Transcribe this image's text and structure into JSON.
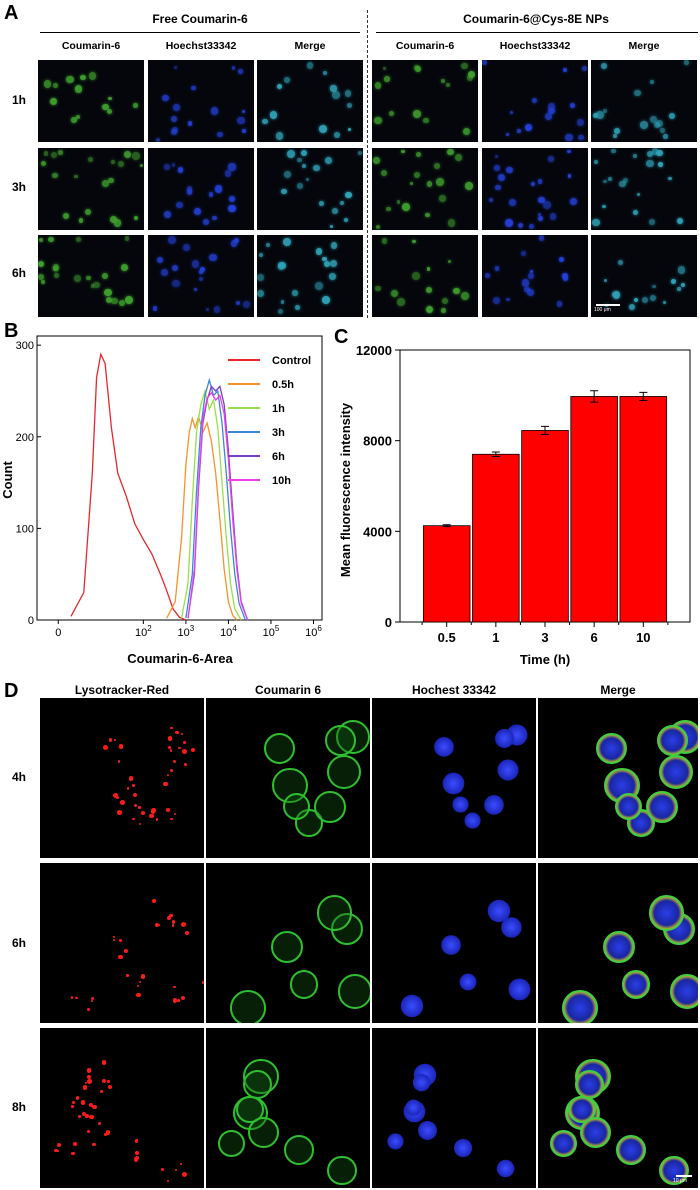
{
  "panelA": {
    "label": "A",
    "group_left": "Free Coumarin-6",
    "group_right": "Coumarin-6@Cys-8E NPs",
    "columns": [
      "Coumarin-6",
      "Hoechst33342",
      "Merge"
    ],
    "rows": [
      "1h",
      "3h",
      "6h"
    ],
    "scale_bar": "100 μm"
  },
  "panelB": {
    "label": "B",
    "chart_data": {
      "type": "line",
      "xlabel": "Coumarin-6-Area",
      "ylabel": "Count",
      "x_scale": "log",
      "x_ticks": [
        "0",
        "10^2",
        "10^3",
        "10^4",
        "10^5",
        "10^6"
      ],
      "y_ticks": [
        0,
        100,
        200,
        300
      ],
      "ylim": [
        0,
        310
      ],
      "legend_position": "top-right",
      "series": [
        {
          "name": "Control",
          "color": "#e8262b",
          "points": [
            [
              0.3,
              4
            ],
            [
              0.6,
              30
            ],
            [
              0.8,
              160
            ],
            [
              0.9,
              265
            ],
            [
              1.0,
              290
            ],
            [
              1.1,
              280
            ],
            [
              1.25,
              210
            ],
            [
              1.4,
              160
            ],
            [
              1.6,
              135
            ],
            [
              1.8,
              105
            ],
            [
              2.0,
              88
            ],
            [
              2.2,
              72
            ],
            [
              2.4,
              50
            ],
            [
              2.55,
              32
            ],
            [
              2.7,
              12
            ],
            [
              2.85,
              3
            ],
            [
              3.0,
              0
            ]
          ]
        },
        {
          "name": "0.5h",
          "color": "#f5932b",
          "points": [
            [
              2.55,
              2
            ],
            [
              2.75,
              20
            ],
            [
              2.9,
              90
            ],
            [
              3.0,
              170
            ],
            [
              3.08,
              205
            ],
            [
              3.15,
              220
            ],
            [
              3.22,
              210
            ],
            [
              3.3,
              222
            ],
            [
              3.4,
              205
            ],
            [
              3.5,
              215
            ],
            [
              3.6,
              195
            ],
            [
              3.7,
              160
            ],
            [
              3.8,
              110
            ],
            [
              3.9,
              55
            ],
            [
              4.0,
              20
            ],
            [
              4.1,
              5
            ],
            [
              4.2,
              0
            ]
          ]
        },
        {
          "name": "1h",
          "color": "#98e04a",
          "points": [
            [
              2.9,
              2
            ],
            [
              3.05,
              40
            ],
            [
              3.15,
              130
            ],
            [
              3.25,
              205
            ],
            [
              3.35,
              235
            ],
            [
              3.45,
              250
            ],
            [
              3.55,
              230
            ],
            [
              3.65,
              240
            ],
            [
              3.75,
              210
            ],
            [
              3.85,
              150
            ],
            [
              3.95,
              90
            ],
            [
              4.05,
              40
            ],
            [
              4.15,
              12
            ],
            [
              4.3,
              0
            ]
          ]
        },
        {
          "name": "3h",
          "color": "#3b86d8",
          "points": [
            [
              3.0,
              2
            ],
            [
              3.15,
              50
            ],
            [
              3.25,
              140
            ],
            [
              3.35,
              210
            ],
            [
              3.45,
              245
            ],
            [
              3.55,
              262
            ],
            [
              3.65,
              245
            ],
            [
              3.75,
              250
            ],
            [
              3.85,
              215
            ],
            [
              3.95,
              160
            ],
            [
              4.05,
              100
            ],
            [
              4.15,
              50
            ],
            [
              4.25,
              18
            ],
            [
              4.4,
              0
            ]
          ]
        },
        {
          "name": "6h",
          "color": "#7a3fc8",
          "points": [
            [
              3.05,
              2
            ],
            [
              3.2,
              50
            ],
            [
              3.3,
              145
            ],
            [
              3.4,
              215
            ],
            [
              3.5,
              240
            ],
            [
              3.6,
              255
            ],
            [
              3.7,
              250
            ],
            [
              3.8,
              255
            ],
            [
              3.9,
              235
            ],
            [
              4.0,
              185
            ],
            [
              4.1,
              120
            ],
            [
              4.2,
              60
            ],
            [
              4.3,
              20
            ],
            [
              4.45,
              0
            ]
          ]
        },
        {
          "name": "10h",
          "color": "#ee3fe8",
          "points": [
            [
              3.05,
              2
            ],
            [
              3.2,
              55
            ],
            [
              3.3,
              150
            ],
            [
              3.4,
              220
            ],
            [
              3.5,
              242
            ],
            [
              3.6,
              248
            ],
            [
              3.7,
              240
            ],
            [
              3.8,
              245
            ],
            [
              3.9,
              225
            ],
            [
              4.0,
              175
            ],
            [
              4.1,
              110
            ],
            [
              4.2,
              55
            ],
            [
              4.3,
              18
            ],
            [
              4.45,
              0
            ]
          ]
        }
      ]
    }
  },
  "panelC": {
    "label": "C",
    "chart_data": {
      "type": "bar",
      "categories": [
        "0.5",
        "1",
        "3",
        "6",
        "10"
      ],
      "values": [
        4250,
        7400,
        8450,
        9950,
        9950
      ],
      "errors": [
        40,
        100,
        180,
        250,
        180
      ],
      "xlabel": "Time (h)",
      "ylabel": "Mean fluorescence intensity",
      "ylim": [
        0,
        12000
      ],
      "y_ticks": [
        0,
        4000,
        8000,
        12000
      ],
      "bar_color": "#ff0000"
    }
  },
  "panelD": {
    "label": "D",
    "columns": [
      "Lysotracker-Red",
      "Coumarin 6",
      "Hochest 33342",
      "Merge"
    ],
    "rows": [
      "4h",
      "6h",
      "8h"
    ],
    "scale_bar": "10 μm"
  }
}
